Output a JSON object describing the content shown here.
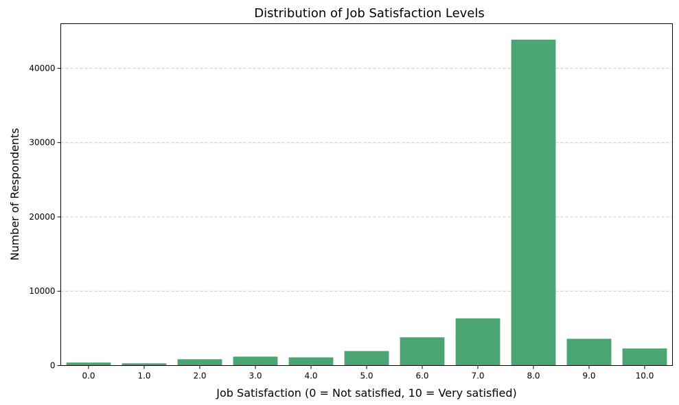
{
  "chart_data": {
    "type": "bar",
    "title": "Distribution of Job Satisfaction Levels",
    "xlabel": "Job Satisfaction (0 = Not satisfied, 10 = Very satisfied)",
    "ylabel": "Number of Respondents",
    "categories": [
      "0.0",
      "1.0",
      "2.0",
      "3.0",
      "4.0",
      "5.0",
      "6.0",
      "7.0",
      "8.0",
      "9.0",
      "10.0"
    ],
    "values": [
      400,
      300,
      850,
      1200,
      1100,
      1950,
      3800,
      6350,
      43850,
      3600,
      2300
    ],
    "ylim": [
      0,
      46000
    ],
    "yticks": [
      0,
      10000,
      20000,
      30000,
      40000
    ],
    "ytick_labels": [
      "0",
      "10000",
      "20000",
      "30000",
      "40000"
    ],
    "grid": "y-dashed",
    "bar_color": "#4aa572"
  }
}
